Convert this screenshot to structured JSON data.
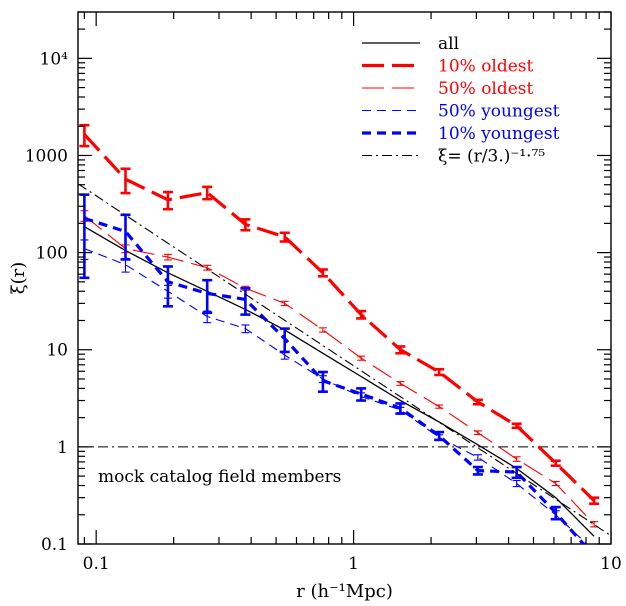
{
  "chart_data": {
    "type": "line",
    "xlabel": "r (h⁻¹Mpc)",
    "ylabel": "ξ(r)",
    "xscale": "log",
    "yscale": "log",
    "xlim": [
      0.085,
      10
    ],
    "ylim": [
      0.1,
      30000
    ],
    "x_ticks": [
      {
        "value": 0.1,
        "label": "0.1"
      },
      {
        "value": 1,
        "label": "1"
      },
      {
        "value": 10,
        "label": "10"
      }
    ],
    "y_ticks": [
      {
        "value": 0.1,
        "label": "0.1"
      },
      {
        "value": 1,
        "label": "1"
      },
      {
        "value": 10,
        "label": "10"
      },
      {
        "value": 100,
        "label": "100"
      },
      {
        "value": 1000,
        "label": "1000"
      },
      {
        "value": 10000,
        "label": "10⁴"
      }
    ],
    "legend_position": "top-right",
    "series": [
      {
        "name": "all",
        "color": "#000000",
        "style": "solid",
        "x": [
          0.09,
          0.13,
          0.19,
          0.27,
          0.38,
          0.54,
          0.76,
          1.07,
          1.52,
          2.15,
          3.04,
          4.3,
          6.1,
          8.6
        ],
        "y": [
          185,
          105,
          62,
          40,
          26,
          16,
          9.2,
          5.3,
          3.0,
          1.8,
          1.05,
          0.6,
          0.3,
          0.12
        ]
      },
      {
        "name": "10% oldest",
        "color": "#ff0000",
        "style": "long-dash-thick",
        "x": [
          0.09,
          0.13,
          0.19,
          0.27,
          0.38,
          0.54,
          0.76,
          1.07,
          1.52,
          2.15,
          3.04,
          4.3,
          6.1,
          8.6
        ],
        "y": [
          1650,
          570,
          350,
          415,
          195,
          145,
          62,
          23,
          10,
          5.9,
          2.9,
          1.65,
          0.68,
          0.28
        ],
        "err": [
          400,
          160,
          70,
          60,
          25,
          15,
          5,
          2,
          0.8,
          0.4,
          0.15,
          0.08,
          0.04,
          0.02
        ]
      },
      {
        "name": "50% oldest",
        "color": "#ff0000",
        "style": "long-dash-thin",
        "x": [
          0.09,
          0.13,
          0.19,
          0.27,
          0.38,
          0.54,
          0.76,
          1.07,
          1.52,
          2.15,
          3.04,
          4.3,
          6.1,
          8.6
        ],
        "y": [
          240,
          110,
          90,
          70,
          43,
          30,
          16,
          8.2,
          4.5,
          2.6,
          1.4,
          0.75,
          0.42,
          0.16
        ],
        "err": [
          30,
          10,
          6,
          4,
          2,
          1.5,
          0.8,
          0.4,
          0.2,
          0.1,
          0.06,
          0.04,
          0.02,
          0.01
        ]
      },
      {
        "name": "50% youngest",
        "color": "#0000ff",
        "style": "short-dash-thin",
        "x": [
          0.09,
          0.13,
          0.19,
          0.27,
          0.38,
          0.54,
          0.76,
          1.07,
          1.52,
          2.15,
          3.04,
          4.3,
          6.1,
          8.6
        ],
        "y": [
          110,
          75,
          40,
          22,
          16.5,
          8.8,
          5.0,
          3.3,
          2.4,
          1.25,
          0.78,
          0.42,
          0.2,
          0.085
        ],
        "err": [
          25,
          12,
          6,
          3,
          1.5,
          0.8,
          0.4,
          0.3,
          0.15,
          0.08,
          0.05,
          0.03,
          0.02,
          0.01
        ]
      },
      {
        "name": "10% youngest",
        "color": "#0000ff",
        "style": "short-dash-thick",
        "x": [
          0.09,
          0.13,
          0.19,
          0.27,
          0.38,
          0.54,
          0.76,
          1.07,
          1.52,
          2.15,
          3.04,
          4.3,
          6.1,
          8.6
        ],
        "y": [
          225,
          165,
          50,
          38,
          33,
          13,
          4.8,
          3.5,
          2.5,
          1.3,
          0.57,
          0.55,
          0.21,
          0.075
        ],
        "err": [
          170,
          80,
          22,
          14,
          10,
          3.5,
          1.1,
          0.5,
          0.3,
          0.12,
          0.05,
          0.07,
          0.03,
          0.01
        ]
      },
      {
        "name": "ξ= (r/3.)⁻¹·⁷⁵",
        "color": "#000000",
        "style": "dash-dot",
        "function": "power-law",
        "r0": 3.0,
        "gamma": 1.75
      }
    ],
    "reference_line": {
      "y": 1,
      "style": "dash-dot",
      "color": "#000000"
    },
    "annotation": "mock catalog field members"
  }
}
